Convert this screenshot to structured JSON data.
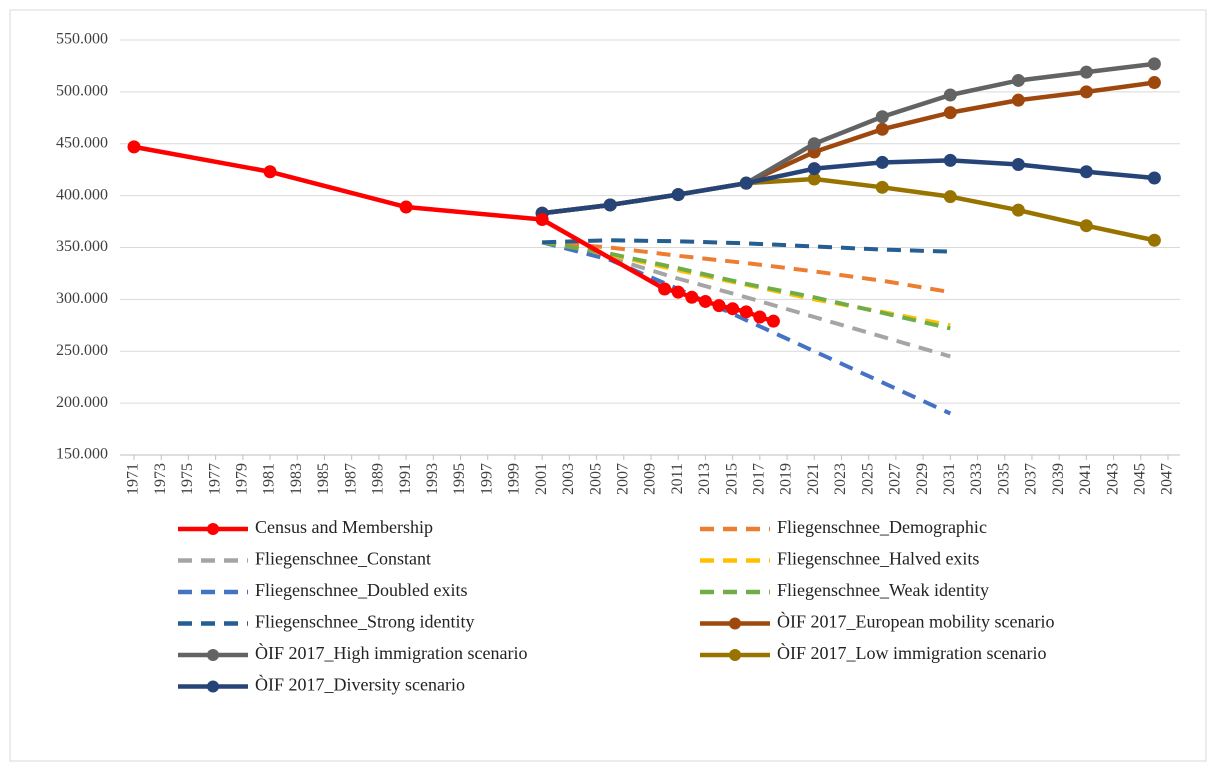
{
  "chart_data": {
    "type": "line",
    "xlim": [
      1971,
      2047
    ],
    "xticks": [
      1971,
      1973,
      1975,
      1977,
      1979,
      1981,
      1983,
      1985,
      1987,
      1989,
      1991,
      1993,
      1995,
      1997,
      1999,
      2001,
      2003,
      2005,
      2007,
      2009,
      2011,
      2013,
      2015,
      2017,
      2019,
      2021,
      2023,
      2025,
      2027,
      2029,
      2031,
      2033,
      2035,
      2037,
      2039,
      2041,
      2043,
      2045,
      2047
    ],
    "ylim": [
      150000,
      550000
    ],
    "yticks": [
      {
        "value": 150000,
        "label": "150.000"
      },
      {
        "value": 200000,
        "label": "200.000"
      },
      {
        "value": 250000,
        "label": "250.000"
      },
      {
        "value": 300000,
        "label": "300.000"
      },
      {
        "value": 350000,
        "label": "350.000"
      },
      {
        "value": 400000,
        "label": "400.000"
      },
      {
        "value": 450000,
        "label": "450.000"
      },
      {
        "value": 500000,
        "label": "500.000"
      },
      {
        "value": 550000,
        "label": "550.000"
      }
    ],
    "grid": true,
    "series": [
      {
        "name": "Census and Membership",
        "color": "#ff0000",
        "dashed": false,
        "marker": true,
        "x": [
          1971,
          1981,
          1991,
          2001,
          2010,
          2011,
          2012,
          2013,
          2014,
          2015,
          2016,
          2017,
          2018
        ],
        "values": [
          447000,
          423000,
          389000,
          377000,
          310000,
          307000,
          302000,
          298000,
          294000,
          291000,
          288000,
          283000,
          279000
        ]
      },
      {
        "name": "Fliegenschnee_Demographic",
        "color": "#ed7d31",
        "dashed": true,
        "marker": false,
        "x": [
          2001,
          2006,
          2011,
          2016,
          2021,
          2026,
          2031
        ],
        "values": [
          355000,
          350000,
          342000,
          335000,
          327000,
          318000,
          307000
        ]
      },
      {
        "name": "Fliegenschnee_Constant",
        "color": "#a5a5a5",
        "dashed": true,
        "marker": false,
        "x": [
          2001,
          2006,
          2011,
          2016,
          2021,
          2026,
          2031
        ],
        "values": [
          355000,
          340000,
          320000,
          302000,
          283000,
          264000,
          245000
        ]
      },
      {
        "name": "Fliegenschnee_Halved exits",
        "color": "#ffc000",
        "dashed": true,
        "marker": false,
        "x": [
          2001,
          2006,
          2011,
          2016,
          2021,
          2026,
          2031
        ],
        "values": [
          355000,
          343000,
          328000,
          314000,
          300000,
          288000,
          275000
        ]
      },
      {
        "name": "Fliegenschnee_Doubled exits",
        "color": "#4472c4",
        "dashed": true,
        "marker": false,
        "x": [
          2001,
          2006,
          2011,
          2016,
          2021,
          2026,
          2031
        ],
        "values": [
          355000,
          338000,
          310000,
          280000,
          250000,
          220000,
          190000
        ]
      },
      {
        "name": "Fliegenschnee_Weak identity",
        "color": "#70ad47",
        "dashed": true,
        "marker": false,
        "x": [
          2001,
          2006,
          2011,
          2016,
          2021,
          2026,
          2031
        ],
        "values": [
          355000,
          344000,
          330000,
          315000,
          302000,
          287000,
          272000
        ]
      },
      {
        "name": "Fliegenschnee_Strong identity",
        "color": "#255e91",
        "dashed": true,
        "marker": false,
        "x": [
          2001,
          2006,
          2011,
          2016,
          2021,
          2026,
          2031
        ],
        "values": [
          355000,
          357000,
          356000,
          354000,
          351000,
          348000,
          346000
        ]
      },
      {
        "name": "ÒIF 2017_European mobility scenario",
        "color": "#9e480e",
        "dashed": false,
        "marker": true,
        "x": [
          2001,
          2006,
          2011,
          2016,
          2021,
          2026,
          2031,
          2036,
          2041,
          2046
        ],
        "values": [
          383000,
          391000,
          401000,
          412000,
          442000,
          464000,
          480000,
          492000,
          500000,
          509000
        ]
      },
      {
        "name": "ÒIF 2017_High immigration scenario",
        "color": "#636363",
        "dashed": false,
        "marker": true,
        "x": [
          2001,
          2006,
          2011,
          2016,
          2021,
          2026,
          2031,
          2036,
          2041,
          2046
        ],
        "values": [
          383000,
          391000,
          401000,
          412000,
          450000,
          476000,
          497000,
          511000,
          519000,
          527000
        ]
      },
      {
        "name": "ÒIF 2017_Low immigration scenario",
        "color": "#997300",
        "dashed": false,
        "marker": true,
        "x": [
          2001,
          2006,
          2011,
          2016,
          2021,
          2026,
          2031,
          2036,
          2041,
          2046
        ],
        "values": [
          383000,
          391000,
          401000,
          412000,
          416000,
          408000,
          399000,
          386000,
          371000,
          357000
        ]
      },
      {
        "name": "ÒIF 2017_Diversity scenario",
        "color": "#264478",
        "dashed": false,
        "marker": true,
        "x": [
          2001,
          2006,
          2011,
          2016,
          2021,
          2026,
          2031,
          2036,
          2041,
          2046
        ],
        "values": [
          383000,
          391000,
          401000,
          412000,
          426000,
          432000,
          434000,
          430000,
          423000,
          417000
        ]
      }
    ]
  }
}
